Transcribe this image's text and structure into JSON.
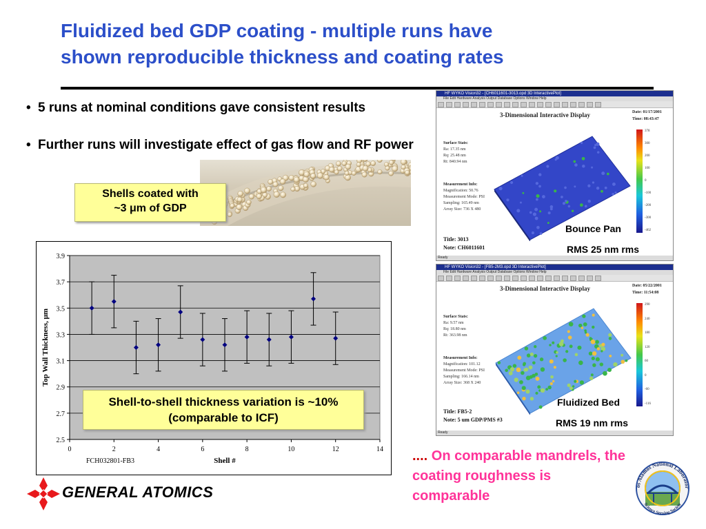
{
  "title": {
    "line1": "Fluidized bed GDP coating - multiple runs have",
    "line2": "shown reproducible thickness and coating rates"
  },
  "bullets": [
    {
      "text": "5 runs at nominal conditions gave consistent results"
    },
    {
      "text": "Further runs will investigate effect of gas flow and RF power"
    }
  ],
  "bullet_glyph": "•",
  "shells_box": {
    "line1": "Shells coated with",
    "line2_prefix": "~3 ",
    "mu": "μ",
    "line2_suffix": "m of GDP"
  },
  "variation_box": {
    "line1": "Shell-to-shell thickness variation is ~10%",
    "line2": "(comparable to ICF)"
  },
  "chart_data": {
    "type": "scatter",
    "title": "",
    "xlabel": "Shell #",
    "ylabel": "Top Wall Thickness, μm",
    "xlim": [
      0,
      14
    ],
    "ylim": [
      2.5,
      3.9
    ],
    "x_ticks": [
      0,
      2,
      4,
      6,
      8,
      10,
      12,
      14
    ],
    "y_ticks": [
      "2.5",
      "2.7",
      "2.9",
      "3.1",
      "3.3",
      "3.5",
      "3.7",
      "3.9"
    ],
    "grid": true,
    "plot_bg": "#c0c0c0",
    "marker_color": "#000080",
    "source_label": "FCH032801-FB3",
    "points": [
      {
        "x": 1,
        "y": 3.5,
        "low": 3.3,
        "high": 3.7
      },
      {
        "x": 2,
        "y": 3.55,
        "low": 3.35,
        "high": 3.75
      },
      {
        "x": 3,
        "y": 3.2,
        "low": 3.0,
        "high": 3.4
      },
      {
        "x": 4,
        "y": 3.22,
        "low": 3.02,
        "high": 3.42
      },
      {
        "x": 5,
        "y": 3.47,
        "low": 3.27,
        "high": 3.67
      },
      {
        "x": 6,
        "y": 3.26,
        "low": 3.06,
        "high": 3.46
      },
      {
        "x": 7,
        "y": 3.22,
        "low": 3.02,
        "high": 3.42
      },
      {
        "x": 8,
        "y": 3.28,
        "low": 3.08,
        "high": 3.48
      },
      {
        "x": 9,
        "y": 3.26,
        "low": 3.06,
        "high": 3.46
      },
      {
        "x": 10,
        "y": 3.28,
        "low": 3.08,
        "high": 3.48
      },
      {
        "x": 11,
        "y": 3.57,
        "low": 3.37,
        "high": 3.77
      },
      {
        "x": 12,
        "y": 3.27,
        "low": 3.07,
        "high": 3.47
      }
    ]
  },
  "screens": [
    {
      "app_title": "HF WYKO Vision32 - [CH6011601-3013.opd 3D InteractivePlot]",
      "menu": "File  Edit  Hardware  Analysis  Output  Database  Options  Window  Help",
      "heading": "3-Dimensional Interactive Display",
      "date": "Date: 01/17/2001",
      "time": "Time: 08:43:47",
      "stats_label": "Surface Stats:",
      "stats": [
        "Ra: 17.35 nm",
        "Rq: 25.48 nm",
        "Rt: 840.94 nm"
      ],
      "info_label": "Measurement Info:",
      "info": [
        "Magnification: 50.76",
        "Measurement Mode: PSI",
        "Sampling: 165.49 nm",
        "Array Size: 736 X 480"
      ],
      "title_line": "Title: 3013",
      "note_line": "Note: CH6011601",
      "colorbar_ticks": [
        "378",
        "300",
        "200",
        "100",
        "0",
        "-100",
        "-200",
        "-300",
        "-462"
      ],
      "status": "Ready",
      "surface_color": "#3346c8",
      "label1": "Bounce Pan",
      "label2": "RMS 25 nm rms"
    },
    {
      "app_title": "HF WYKO Vision32 - [FB5-2M3.opd 3D InteractivePlot]",
      "menu": "File  Edit  Hardware  Analysis  Output  Database  Options  Window  Help",
      "heading": "3-Dimensional Interactive Display",
      "date": "Date: 05/22/2001",
      "time": "Time: 11:54:08",
      "stats_label": "Surface Stats:",
      "stats": [
        "Ra: 9.57 nm",
        "Rq: 18.80 nm",
        "Rt: 363.98 nm"
      ],
      "info_label": "Measurement Info:",
      "info": [
        "Magnification: 101.12",
        "Measurement Mode: PSI",
        "Sampling: 166.14 nm",
        "Array Size: 368 X 240"
      ],
      "title_line": "Title: FB5-2",
      "note_line": "Note: 5 um GDP/PMS #3",
      "colorbar_ticks": [
        "290",
        "240",
        "180",
        "120",
        "60",
        "0",
        "-60",
        "-116"
      ],
      "status": "Ready",
      "surface_color": "#6aa3e8",
      "label1": "Fluidized Bed",
      "label2": "RMS 19 nm rms"
    }
  ],
  "conclusion": {
    "prefix": "....",
    "text": " On comparable mandrels, the coating roughness is comparable"
  },
  "logo_ga": {
    "text": "GENERAL ATOMICS",
    "color": "#e8191c"
  },
  "logo_lanl": {
    "top": "Los Alamos National Laboratory",
    "bottom": "Science Serving Society"
  }
}
